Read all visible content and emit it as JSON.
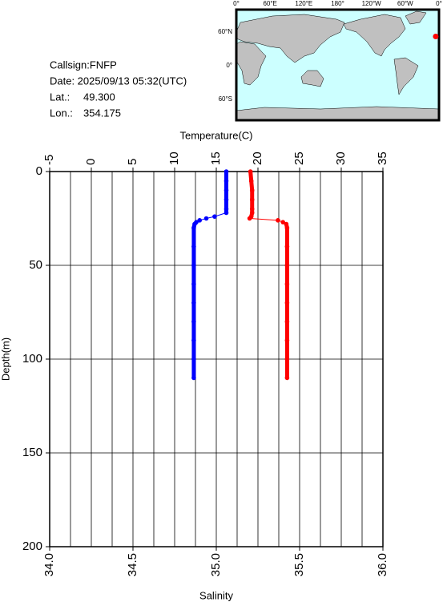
{
  "info": {
    "callsign": "Callsign:FNFP",
    "date": "Date:  2025/09/13 05:32(UTC)",
    "lat_label": "Lat.:",
    "lat": "49.300",
    "lon_label": "Lon.:",
    "lon": "354.175"
  },
  "map": {
    "lon_labels": [
      "0°",
      "60°E",
      "120°E",
      "180°",
      "120°W",
      "60°W",
      "0°"
    ],
    "lat_labels": [
      "60°N",
      "0°",
      "60°S"
    ],
    "marker_color": "#ff0000"
  },
  "chart_data": {
    "type": "line",
    "x2_label": "Temperature(C)",
    "x_label": "Salinity",
    "y_label": "Depth(m)",
    "ylim": [
      0,
      200
    ],
    "y_inverted": true,
    "yticks": [
      0,
      50,
      100,
      150,
      200
    ],
    "x2lim": [
      -5,
      35
    ],
    "x2ticks": [
      -5,
      0,
      5,
      10,
      15,
      20,
      25,
      30,
      35
    ],
    "x2_grid_step": 2.5,
    "xlim": [
      34,
      36
    ],
    "xticks": [
      {
        "value": 34,
        "label": "34.0"
      },
      34.5,
      {
        "value": 35,
        "label": "35.0"
      },
      35.5,
      {
        "value": 36,
        "label": "36.0"
      }
    ],
    "grid": true,
    "depth": [
      0,
      5,
      10,
      15,
      20,
      22,
      24,
      25,
      26,
      27,
      28,
      30,
      40,
      50,
      60,
      70,
      80,
      90,
      100,
      110
    ],
    "series": [
      {
        "color": "#ff0000",
        "axis": "x2",
        "values": [
          19.1,
          19.2,
          19.3,
          19.3,
          19.3,
          19.3,
          19.2,
          19.0,
          22.4,
          23.0,
          23.4,
          23.5,
          23.5,
          23.5,
          23.5,
          23.5,
          23.5,
          23.5,
          23.5,
          23.5
        ]
      },
      {
        "color": "#0000ff",
        "axis": "x",
        "values": [
          35.06,
          35.06,
          35.06,
          35.06,
          35.06,
          35.06,
          34.99,
          34.94,
          34.9,
          34.88,
          34.87,
          34.865,
          34.865,
          34.865,
          34.865,
          34.865,
          34.865,
          34.865,
          34.865,
          34.865
        ]
      }
    ]
  }
}
